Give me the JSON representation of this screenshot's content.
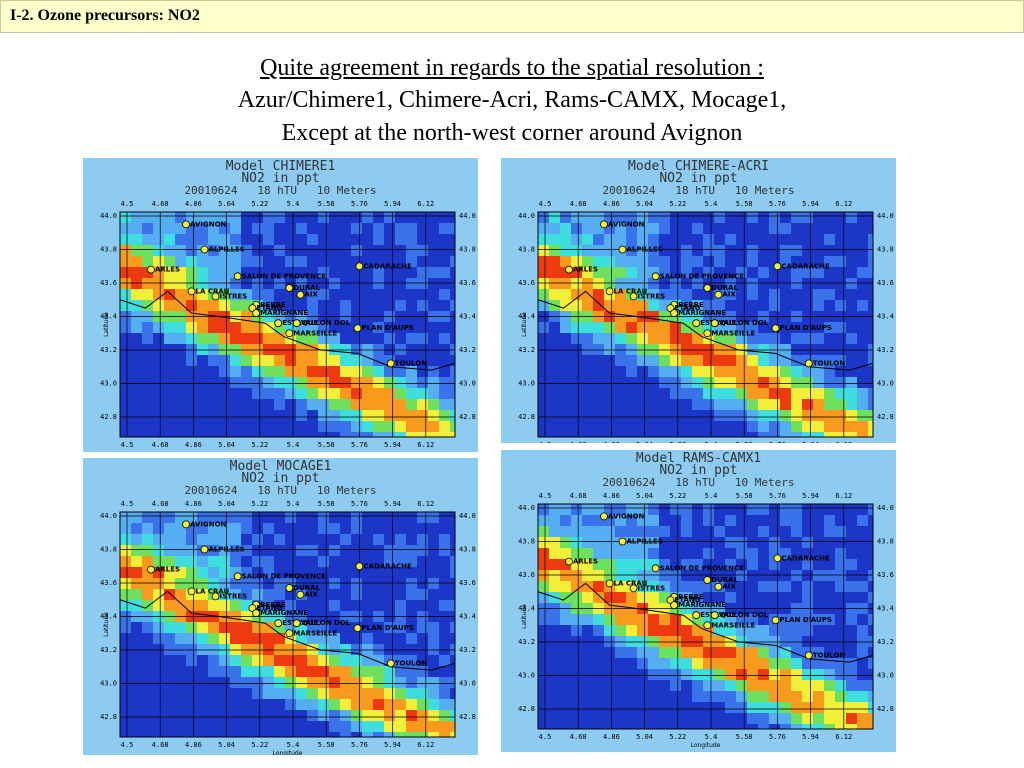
{
  "header": {
    "title": "I-2. Ozone precursors: NO2"
  },
  "subtitle": [
    "Quite agreement in regards to the spatial resolution :",
    "Azur/Chimere1, Chimere-Acri, Rams-CAMX, Mocage1,",
    "Except at the north-west corner around Avignon"
  ],
  "map": {
    "xticks": [
      "4.5",
      "4.68",
      "4.86",
      "5.04",
      "5.22",
      "5.4",
      "5.58",
      "5.76",
      "5.94",
      "6.12"
    ],
    "yticks": [
      "44.0",
      "43.8",
      "43.6",
      "43.4",
      "43.2",
      "43.0",
      "42.8"
    ],
    "ylabel": "Latitude",
    "xlabel": "Longitude",
    "stations": [
      "AVIGNON",
      "ALPILLES",
      "ARLES",
      "CADARACHE",
      "SALON DE PROVENCE",
      "DURAL",
      "LA CRAU",
      "ISTRES",
      "AIX",
      "BERRE",
      "ETANG",
      "MARIGNANE",
      "ESTAQUE",
      "VALLON DOL",
      "MARSEILLE",
      "PLAN D'AUPS",
      "TOULON"
    ]
  },
  "panels": [
    {
      "title": "Model CHIMERE1",
      "species": "NO2 in ppt",
      "date": "20010624   18 hTU   10 Meters"
    },
    {
      "title": "Model CHIMERE-ACRI",
      "species": "NO2 in ppt",
      "date": "20010624   18 hTU   10 Meters"
    },
    {
      "title": "Model MOCAGE1",
      "species": "NO2 in ppt",
      "date": "20010624   18 hTU   10 Meters"
    },
    {
      "title": "Model RAMS-CAMX1",
      "species": "NO2 in ppt",
      "date": "20010624   18 hTU   10 Meters"
    }
  ]
}
